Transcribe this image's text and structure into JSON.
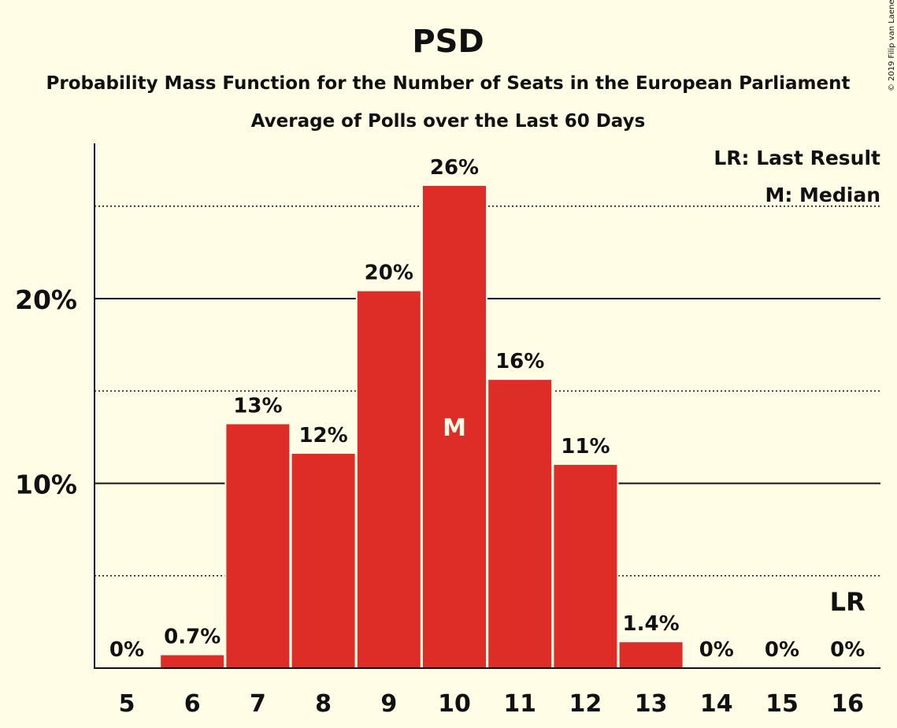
{
  "chart_data": {
    "type": "bar",
    "title": "PSD",
    "subtitle": "Probability Mass Function for the Number of Seats in the European Parliament",
    "subtitle2": "Average of Polls over the Last 60 Days",
    "categories": [
      "5",
      "6",
      "7",
      "8",
      "9",
      "10",
      "11",
      "12",
      "13",
      "14",
      "15",
      "16"
    ],
    "values": [
      0,
      0.7,
      13.2,
      11.6,
      20.4,
      26.1,
      15.6,
      11.0,
      1.4,
      0,
      0,
      0
    ],
    "data_labels": [
      "0%",
      "0.7%",
      "13%",
      "12%",
      "20%",
      "26%",
      "16%",
      "11%",
      "1.4%",
      "0%",
      "0%",
      "0%"
    ],
    "ylim": [
      0,
      28.4
    ],
    "yticks": [
      {
        "value": 10,
        "label": "10%"
      },
      {
        "value": 20,
        "label": "20%"
      }
    ],
    "minor_gridlines": [
      5,
      15,
      25
    ],
    "bar_color": "#de2d26",
    "median_category": "10",
    "median_marker": "M",
    "last_result_category": "16",
    "last_result_marker": "LR",
    "legend": [
      "LR: Last Result",
      "M: Median"
    ],
    "legend_position": "top-right",
    "copyright": "© 2019 Filip van Laenen"
  }
}
